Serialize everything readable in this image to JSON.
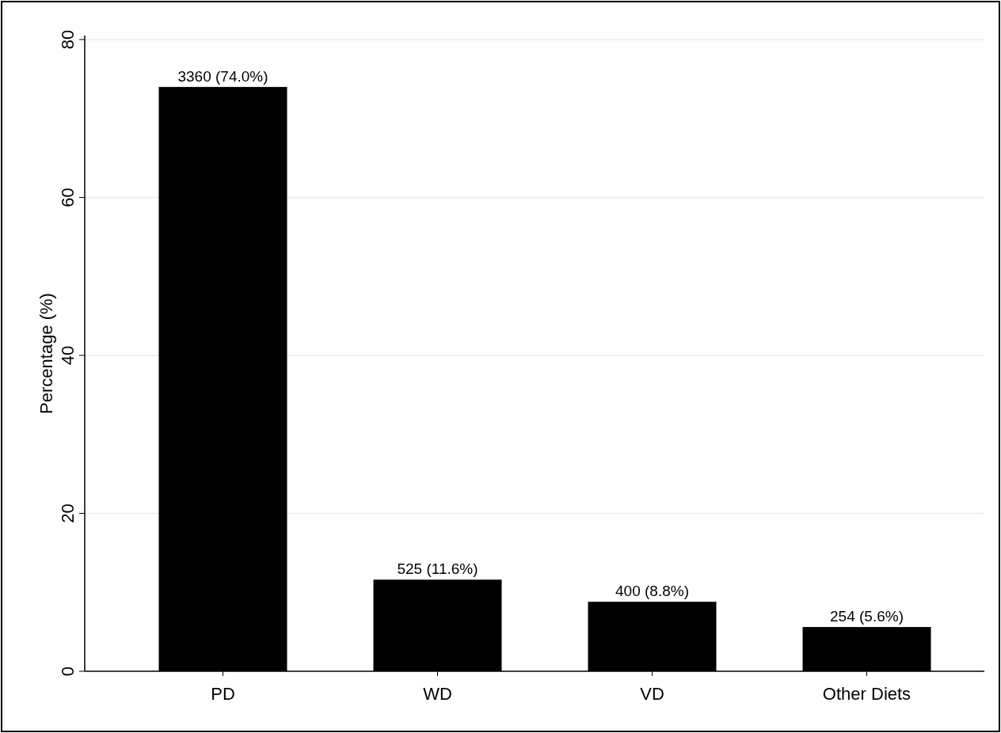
{
  "chart_data": {
    "type": "bar",
    "ylabel": "Percentage (%)",
    "categories": [
      "PD",
      "WD",
      "VD",
      "Other Diets"
    ],
    "values": [
      74.0,
      11.6,
      8.8,
      5.6
    ],
    "value_labels": [
      "3360 (74.0%)",
      "525 (11.6%)",
      "400 (8.8%)",
      "254 (5.6%)"
    ],
    "color": "#000000",
    "ylim": [
      0,
      80.5
    ],
    "yticks": [
      0,
      20,
      40,
      60,
      80
    ],
    "grid": "y"
  }
}
